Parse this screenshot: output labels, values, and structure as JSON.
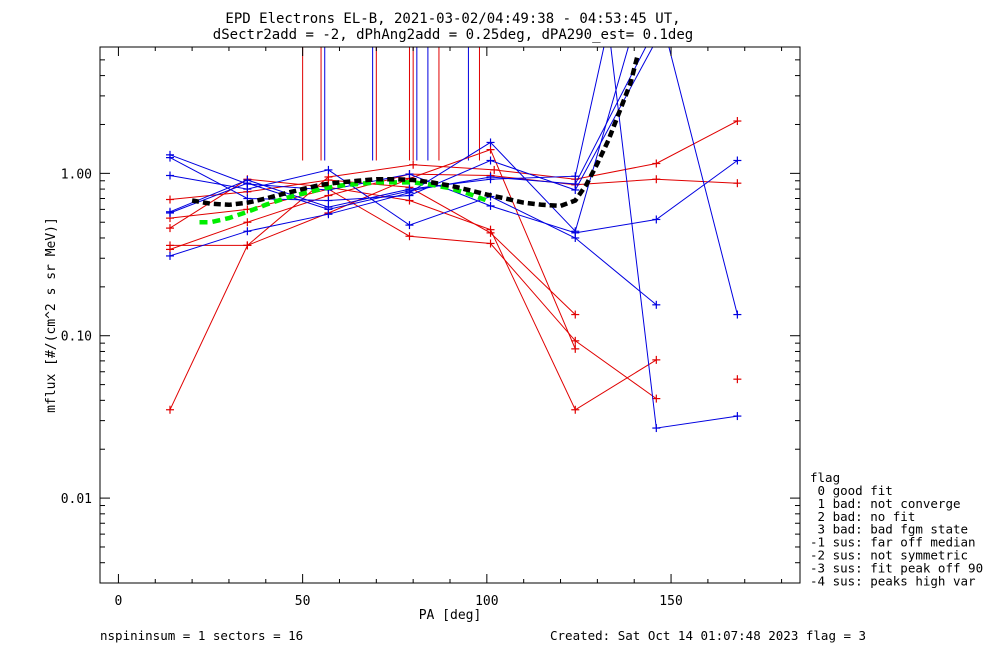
{
  "chart_data": {
    "type": "line",
    "title": "EPD Electrons EL-B, 2021-03-02/04:49:38 - 04:53:45 UT,",
    "subtitle": "dSectr2add = -2, dPhAng2add = 0.25deg, dPA290_est=   0.1deg",
    "xlabel": "PA [deg]",
    "ylabel": "mflux [#/(cm^2 s sr MeV)]",
    "xlim": [
      -5,
      185
    ],
    "ylim": [
      0.003,
      6
    ],
    "yscale": "log",
    "xticks": [
      0,
      50,
      100,
      150
    ],
    "xtick_labels": [
      "0",
      "50",
      "100",
      "150"
    ],
    "yticks": [
      0.01,
      0.1,
      1.0
    ],
    "ytick_labels": [
      "0.01",
      "0.10",
      "1.00"
    ],
    "grid": false,
    "colors": {
      "red": "#e00000",
      "blue": "#0000e0",
      "black": "#000000",
      "green": "#00ee00"
    },
    "series": [
      {
        "color": "#e00000",
        "marker": "+",
        "points": [
          [
            14,
            0.035
          ],
          [
            35,
            0.36
          ],
          [
            57,
            0.95
          ],
          [
            80,
            1.13
          ],
          [
            102,
            1.05
          ],
          [
            124,
            0.92
          ],
          [
            146,
            1.15
          ],
          [
            168,
            2.1
          ]
        ]
      },
      {
        "color": "#e00000",
        "marker": "+",
        "points": [
          [
            14,
            0.36
          ],
          [
            35,
            0.36
          ],
          [
            57,
            0.57
          ],
          [
            79,
            0.93
          ],
          [
            101,
            1.4
          ],
          [
            124,
            0.083
          ]
        ]
      },
      {
        "color": "#e00000",
        "marker": "+",
        "points": [
          [
            14,
            0.46
          ],
          [
            35,
            0.92
          ],
          [
            57,
            0.82
          ],
          [
            79,
            0.68
          ],
          [
            101,
            0.45
          ],
          [
            124,
            0.035
          ],
          [
            146,
            0.071
          ]
        ]
      },
      {
        "color": "#e00000",
        "marker": "+",
        "points": [
          [
            14,
            0.53
          ],
          [
            35,
            0.6
          ],
          [
            57,
            0.8
          ],
          [
            79,
            0.41
          ],
          [
            101,
            0.37
          ],
          [
            124,
            0.093
          ],
          [
            146,
            0.041
          ]
        ]
      },
      {
        "color": "#e00000",
        "marker": "+",
        "points": [
          [
            14,
            0.69
          ],
          [
            35,
            0.77
          ],
          [
            57,
            0.91
          ],
          [
            79,
            0.82
          ],
          [
            101,
            0.43
          ],
          [
            124,
            0.135
          ]
        ]
      },
      {
        "color": "#e00000",
        "marker": "+",
        "points": [
          [
            14,
            0.34
          ],
          [
            35,
            0.5
          ],
          [
            57,
            0.73
          ],
          [
            79,
            0.99
          ],
          [
            101,
            0.97
          ],
          [
            124,
            0.85
          ],
          [
            146,
            0.92
          ],
          [
            168,
            0.87
          ]
        ]
      },
      {
        "color": "#e00000",
        "marker": "+",
        "points": [
          [
            168,
            0.054
          ]
        ]
      },
      {
        "color": "#0000e0",
        "marker": "+",
        "points": [
          [
            14,
            1.3
          ],
          [
            35,
            0.86
          ],
          [
            57,
            0.79
          ],
          [
            79,
            0.99
          ],
          [
            101,
            0.63
          ],
          [
            124,
            0.43
          ],
          [
            146,
            0.52
          ],
          [
            168,
            1.2
          ]
        ]
      },
      {
        "color": "#0000e0",
        "marker": "+",
        "points": [
          [
            14,
            0.97
          ],
          [
            35,
            0.8
          ],
          [
            57,
            1.05
          ],
          [
            79,
            0.48
          ],
          [
            101,
            0.72
          ],
          [
            124,
            0.4
          ],
          [
            146,
            0.155
          ]
        ]
      },
      {
        "color": "#0000e0",
        "marker": "+",
        "points": [
          [
            14,
            0.58
          ],
          [
            35,
            0.91
          ],
          [
            57,
            0.62
          ],
          [
            79,
            0.8
          ],
          [
            101,
            0.92
          ],
          [
            124,
            0.96
          ],
          [
            133,
            8
          ],
          [
            146,
            0.027
          ],
          [
            168,
            0.032
          ]
        ]
      },
      {
        "color": "#0000e0",
        "marker": "+",
        "points": [
          [
            14,
            0.31
          ],
          [
            35,
            0.44
          ],
          [
            57,
            0.56
          ],
          [
            79,
            0.76
          ],
          [
            101,
            1.55
          ],
          [
            124,
            0.44
          ],
          [
            140,
            8
          ]
        ]
      },
      {
        "color": "#0000e0",
        "marker": "+",
        "points": [
          [
            14,
            1.25
          ],
          [
            35,
            0.7
          ],
          [
            57,
            0.68
          ],
          [
            79,
            0.73
          ],
          [
            101,
            1.2
          ],
          [
            124,
            0.79
          ],
          [
            148,
            8
          ],
          [
            168,
            0.135
          ]
        ]
      },
      {
        "color": "#0000e0",
        "marker": "+",
        "points": [
          [
            14,
            0.57
          ],
          [
            35,
            0.87
          ],
          [
            57,
            0.6
          ],
          [
            79,
            0.78
          ],
          [
            101,
            0.95
          ],
          [
            124,
            0.86
          ],
          [
            146,
            8
          ]
        ]
      }
    ],
    "vertical_lines": {
      "y_from": 1.2,
      "red_x": [
        50,
        55,
        70,
        79,
        80,
        87,
        98
      ],
      "blue_x": [
        56,
        69,
        81,
        84,
        95
      ]
    },
    "fit_black": {
      "color": "#000000",
      "style": "dashed",
      "points": [
        [
          20,
          0.68
        ],
        [
          25,
          0.65
        ],
        [
          30,
          0.64
        ],
        [
          35,
          0.66
        ],
        [
          40,
          0.7
        ],
        [
          45,
          0.75
        ],
        [
          50,
          0.8
        ],
        [
          55,
          0.85
        ],
        [
          60,
          0.88
        ],
        [
          65,
          0.9
        ],
        [
          70,
          0.92
        ],
        [
          75,
          0.92
        ],
        [
          80,
          0.91
        ],
        [
          85,
          0.88
        ],
        [
          90,
          0.84
        ],
        [
          95,
          0.79
        ],
        [
          100,
          0.74
        ],
        [
          105,
          0.7
        ],
        [
          110,
          0.66
        ],
        [
          115,
          0.64
        ],
        [
          120,
          0.63
        ],
        [
          124,
          0.68
        ],
        [
          127,
          0.85
        ],
        [
          130,
          1.15
        ],
        [
          133,
          1.6
        ],
        [
          136,
          2.4
        ],
        [
          139,
          3.6
        ],
        [
          141,
          5.4
        ]
      ]
    },
    "fit_green": {
      "color": "#00ee00",
      "style": "dashed",
      "points": [
        [
          22,
          0.5
        ],
        [
          25,
          0.5
        ],
        [
          30,
          0.53
        ],
        [
          35,
          0.58
        ],
        [
          40,
          0.64
        ],
        [
          45,
          0.7
        ],
        [
          50,
          0.75
        ],
        [
          55,
          0.8
        ],
        [
          60,
          0.84
        ],
        [
          65,
          0.86
        ],
        [
          70,
          0.88
        ],
        [
          75,
          0.88
        ],
        [
          80,
          0.88
        ],
        [
          85,
          0.85
        ],
        [
          90,
          0.81
        ],
        [
          95,
          0.75
        ],
        [
          100,
          0.68
        ]
      ]
    },
    "legend": {
      "position": "right-bottom",
      "title": "flag",
      "entries": [
        " 0 good fit",
        " 1 bad: not converge",
        " 2 bad: no fit",
        " 3 bad: bad fgm state",
        "-1 sus: far off median",
        "-2 sus: not symmetric",
        "-3 sus: fit peak off 90",
        "-4 sus: peaks high var"
      ]
    }
  },
  "footer": {
    "left": "nspininsum =  1  sectors = 16",
    "right": "Created: Sat Oct 14 01:07:48 2023   flag = 3"
  }
}
